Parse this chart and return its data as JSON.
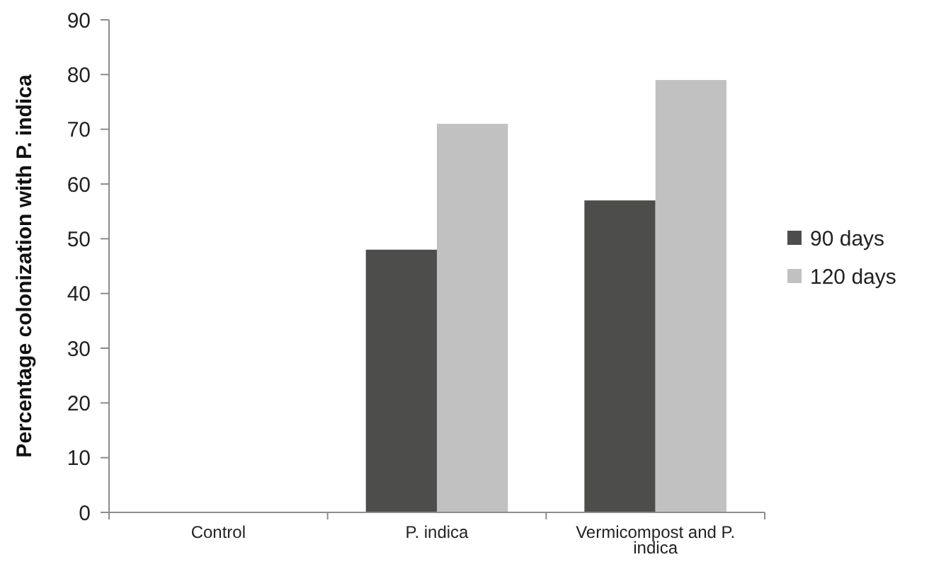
{
  "chart_data": {
    "type": "bar",
    "ylabel": "Percentage colonization with P. indica",
    "categories": [
      "Control",
      "P. indica",
      "Vermicompost and P. indica"
    ],
    "series": [
      {
        "name": "90 days",
        "color": "#4d4d4b",
        "values": [
          0,
          48,
          57
        ]
      },
      {
        "name": "120 days",
        "color": "#c0c1c0",
        "values": [
          0,
          71,
          79
        ]
      }
    ],
    "ylim": [
      0,
      90
    ],
    "yticks": [
      0,
      10,
      20,
      30,
      40,
      50,
      60,
      70,
      80,
      90
    ],
    "grid": false,
    "legend": "right"
  }
}
